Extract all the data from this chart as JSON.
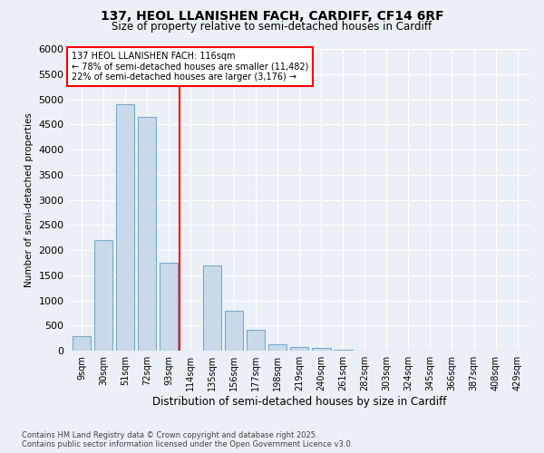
{
  "title_line1": "137, HEOL LLANISHEN FACH, CARDIFF, CF14 6RF",
  "title_line2": "Size of property relative to semi-detached houses in Cardiff",
  "xlabel": "Distribution of semi-detached houses by size in Cardiff",
  "ylabel": "Number of semi-detached properties",
  "categories": [
    "9sqm",
    "30sqm",
    "51sqm",
    "72sqm",
    "93sqm",
    "114sqm",
    "135sqm",
    "156sqm",
    "177sqm",
    "198sqm",
    "219sqm",
    "240sqm",
    "261sqm",
    "282sqm",
    "303sqm",
    "324sqm",
    "345sqm",
    "366sqm",
    "387sqm",
    "408sqm",
    "429sqm"
  ],
  "bar_heights": [
    300,
    2200,
    4900,
    4650,
    1750,
    0,
    1700,
    800,
    420,
    130,
    80,
    50,
    20,
    10,
    0,
    0,
    0,
    0,
    0,
    0,
    0
  ],
  "bar_color": "#c9d9ea",
  "bar_edge_color": "#7aaac8",
  "ylim": [
    0,
    6000
  ],
  "yticks": [
    0,
    500,
    1000,
    1500,
    2000,
    2500,
    3000,
    3500,
    4000,
    4500,
    5000,
    5500,
    6000
  ],
  "property_line_x": 4.5,
  "annotation_title": "137 HEOL LLANISHEN FACH: 116sqm",
  "annotation_line1": "← 78% of semi-detached houses are smaller (11,482)",
  "annotation_line2": "22% of semi-detached houses are larger (3,176) →",
  "footnote_line1": "Contains HM Land Registry data © Crown copyright and database right 2025.",
  "footnote_line2": "Contains public sector information licensed under the Open Government Licence v3.0.",
  "bg_color": "#eaf0f6",
  "plot_bg_color": "#eaf0f6",
  "grid_color": "#ffffff"
}
